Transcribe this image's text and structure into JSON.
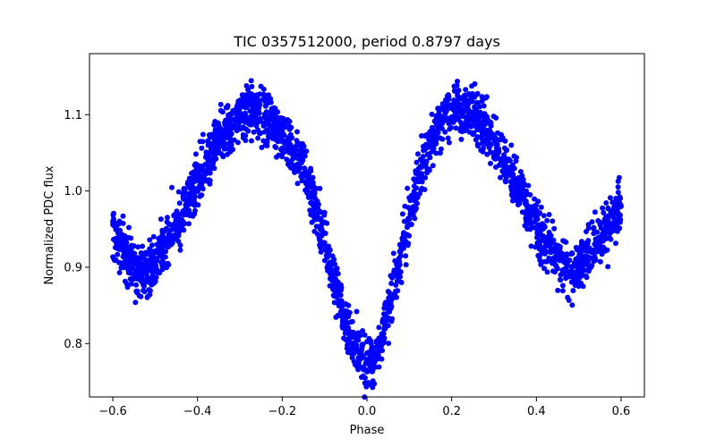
{
  "chart_data": {
    "type": "scatter",
    "title": "TIC 0357512000, period 0.8797 days",
    "xlabel": "Phase",
    "ylabel": "Normalized PDC flux",
    "xlim": [
      -0.655,
      0.655
    ],
    "ylim": [
      0.73,
      1.18
    ],
    "x_ticks": [
      -0.6,
      -0.4,
      -0.2,
      0.0,
      0.2,
      0.4,
      0.6
    ],
    "x_tick_labels": [
      "−0.6",
      "−0.4",
      "−0.2",
      "0.0",
      "0.2",
      "0.4",
      "0.6"
    ],
    "y_ticks": [
      0.8,
      0.9,
      1.0,
      1.1
    ],
    "y_tick_labels": [
      "0.8",
      "0.9",
      "1.0",
      "1.1"
    ],
    "grid": false,
    "marker_color": "#0000ff",
    "series": [
      {
        "phase": [
          -0.6,
          -0.58,
          -0.55,
          -0.52,
          -0.5,
          -0.48,
          -0.45,
          -0.42,
          -0.4,
          -0.37,
          -0.35,
          -0.32,
          -0.3,
          -0.28,
          -0.26,
          -0.24,
          -0.22,
          -0.2,
          -0.18,
          -0.16,
          -0.14,
          -0.12,
          -0.1,
          -0.08,
          -0.06,
          -0.04,
          -0.03,
          -0.02,
          -0.01,
          0.0,
          0.01,
          0.02,
          0.03,
          0.04,
          0.06,
          0.08,
          0.1,
          0.12,
          0.14,
          0.16,
          0.18,
          0.2,
          0.22,
          0.24,
          0.26,
          0.28,
          0.3,
          0.32,
          0.35,
          0.37,
          0.4,
          0.42,
          0.45,
          0.48,
          0.5,
          0.52,
          0.55,
          0.58,
          0.6
        ],
        "flux": [
          0.955,
          0.925,
          0.905,
          0.895,
          0.905,
          0.925,
          0.955,
          0.99,
          1.015,
          1.045,
          1.07,
          1.09,
          1.1,
          1.105,
          1.105,
          1.1,
          1.09,
          1.075,
          1.06,
          1.04,
          1.01,
          0.975,
          0.935,
          0.89,
          0.845,
          0.81,
          0.795,
          0.785,
          0.778,
          0.775,
          0.778,
          0.785,
          0.8,
          0.82,
          0.865,
          0.915,
          0.965,
          1.01,
          1.045,
          1.075,
          1.095,
          1.105,
          1.108,
          1.105,
          1.095,
          1.08,
          1.06,
          1.04,
          1.01,
          0.985,
          0.955,
          0.93,
          0.91,
          0.895,
          0.9,
          0.915,
          0.935,
          0.965,
          0.985
        ],
        "scatter": 0.03
      }
    ]
  }
}
